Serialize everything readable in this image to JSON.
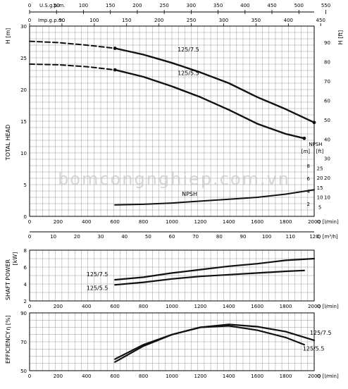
{
  "watermark": "bomcongnghiep.com.vn",
  "colors": {
    "curve": "#111111",
    "grid": "#9a9a9a",
    "frame": "#000000",
    "watermark": "#c9c9c9"
  },
  "top_axes": {
    "usgpm_label": "U.S.g.p.m.",
    "usgpm_ticks": [
      "0",
      "50",
      "100",
      "150",
      "200",
      "250",
      "300",
      "350",
      "400",
      "450",
      "500",
      "550"
    ],
    "impgpm_label": "Imp.g.p.m.",
    "impgpm_ticks": [
      "0",
      "50",
      "100",
      "150",
      "200",
      "250",
      "300",
      "350",
      "400",
      "450"
    ]
  },
  "chart_data": [
    {
      "type": "line",
      "name": "head",
      "ylabel": "TOTAL HEAD",
      "yunit": "H [m]",
      "yunit_right": "H [ft]",
      "ylim": [
        0,
        30
      ],
      "yticks": [
        "0",
        "5",
        "10",
        "15",
        "20",
        "25",
        "30"
      ],
      "yticks_ft": [
        "10",
        "20",
        "30",
        "40",
        "50",
        "60",
        "70",
        "80",
        "90"
      ],
      "xlim": [
        0,
        2000
      ],
      "xticks": [
        "0",
        "200",
        "400",
        "600",
        "800",
        "1000",
        "1200",
        "1400",
        "1600",
        "1800",
        "2000"
      ],
      "xunit": "Q [l/min]",
      "x_m3h_ticks": [
        "0",
        "10",
        "20",
        "30",
        "40",
        "50",
        "60",
        "70",
        "80",
        "90",
        "100",
        "110",
        "120"
      ],
      "x_m3h_unit": "Q [m³/h]",
      "series": [
        {
          "name": "125/7.5",
          "dashed_x": [
            0,
            200,
            400,
            600
          ],
          "dashed_y": [
            27.6,
            27.4,
            27.0,
            26.5
          ],
          "x": [
            600,
            800,
            1000,
            1200,
            1400,
            1600,
            1800,
            2000
          ],
          "y": [
            26.5,
            25.5,
            24.2,
            22.7,
            21.0,
            18.8,
            16.9,
            14.8
          ]
        },
        {
          "name": "125/5.5",
          "dashed_x": [
            0,
            200,
            400,
            600
          ],
          "dashed_y": [
            24.0,
            23.9,
            23.6,
            23.1
          ],
          "x": [
            600,
            800,
            1000,
            1200,
            1400,
            1600,
            1800,
            1930
          ],
          "y": [
            23.1,
            22.0,
            20.5,
            18.8,
            16.8,
            14.6,
            13.0,
            12.3
          ]
        },
        {
          "name": "NPSH",
          "x": [
            600,
            800,
            1000,
            1200,
            1400,
            1600,
            1800,
            2000
          ],
          "y": [
            1.8,
            1.9,
            2.1,
            2.4,
            2.7,
            3.0,
            3.5,
            4.2
          ]
        }
      ],
      "npsh_axis": {
        "label": "NPSH",
        "unit_m": "[m]",
        "unit_ft": "[ft]",
        "m_ticks": [
          "2",
          "4",
          "6",
          "8"
        ],
        "ft_ticks": [
          "5",
          "10",
          "15",
          "20",
          "25"
        ]
      }
    },
    {
      "type": "line",
      "name": "power",
      "ylabel": "SHAFT POWER",
      "yunit": "[kW]",
      "ylim": [
        2,
        8
      ],
      "yticks": [
        "2",
        "4",
        "6",
        "8"
      ],
      "xlim": [
        0,
        2000
      ],
      "xticks": [
        "0",
        "200",
        "400",
        "600",
        "800",
        "1000",
        "1200",
        "1400",
        "1600",
        "1800",
        "2000"
      ],
      "xunit": "Q [l/min]",
      "series": [
        {
          "name": "125/7.5",
          "x": [
            600,
            800,
            1000,
            1200,
            1400,
            1600,
            1800,
            2000
          ],
          "y": [
            4.5,
            4.8,
            5.3,
            5.7,
            6.1,
            6.4,
            6.8,
            7.0
          ]
        },
        {
          "name": "125/5.5",
          "x": [
            600,
            800,
            1000,
            1200,
            1400,
            1600,
            1800,
            1930
          ],
          "y": [
            3.9,
            4.2,
            4.6,
            4.9,
            5.1,
            5.3,
            5.5,
            5.6
          ]
        }
      ]
    },
    {
      "type": "line",
      "name": "efficiency",
      "ylabel": "EFFICIENCY",
      "yunit": "η [%]",
      "ylim": [
        50,
        90
      ],
      "yticks": [
        "50",
        "70",
        "90"
      ],
      "xlim": [
        0,
        2000
      ],
      "xticks": [
        "0",
        "200",
        "400",
        "600",
        "800",
        "1000",
        "1200",
        "1400",
        "1600",
        "1800",
        "2000"
      ],
      "xunit": "Q [l/min]",
      "series": [
        {
          "name": "125/7.5",
          "x": [
            600,
            800,
            1000,
            1200,
            1400,
            1600,
            1800,
            2000
          ],
          "y": [
            58,
            68,
            75,
            80,
            82,
            80.5,
            77,
            71
          ]
        },
        {
          "name": "125/5.5",
          "x": [
            600,
            800,
            1000,
            1200,
            1400,
            1600,
            1800,
            1930
          ],
          "y": [
            56,
            67,
            75,
            80,
            81,
            78,
            73,
            68
          ]
        }
      ]
    }
  ]
}
